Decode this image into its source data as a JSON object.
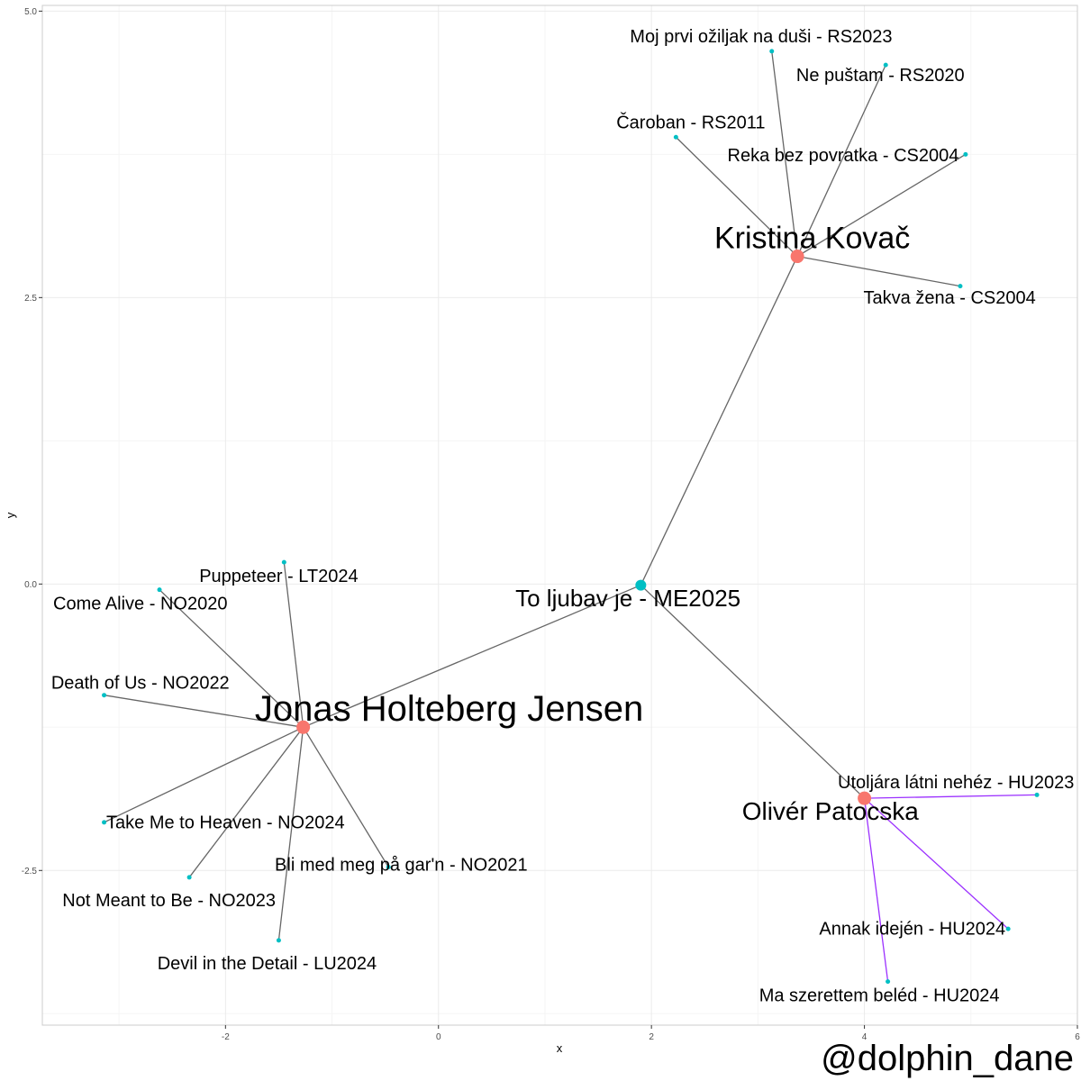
{
  "chart_data": {
    "type": "network",
    "xlabel": "x",
    "ylabel": "y",
    "xlim": [
      -3.72,
      6.0
    ],
    "ylim": [
      -3.85,
      5.05
    ],
    "x_ticks": [
      -2,
      0,
      2,
      4,
      6
    ],
    "x_tick_labels": [
      "-2",
      "0",
      "2",
      "4",
      "6"
    ],
    "y_ticks": [
      -2.5,
      0.0,
      2.5,
      5.0
    ],
    "y_tick_labels": [
      "-2.5",
      "0.0",
      "2.5",
      "5.0"
    ],
    "grid": true,
    "colors": {
      "artist": "#f8766d",
      "song": "#00bfc4",
      "edge": "#666666",
      "edge_highlight": "#9b30ff",
      "grid_major": "#ebebeb",
      "grid_minor": "#f5f5f5",
      "panel_border": "#cccccc"
    },
    "nodes": [
      {
        "id": "center",
        "label": "To ljubav je - ME2025",
        "kind": "song",
        "size": "medium",
        "x": 1.9,
        "y": -0.01,
        "font": 26,
        "lx": 1.78,
        "ly": -0.14
      },
      {
        "id": "kk",
        "label": "Kristina Kovač",
        "kind": "artist",
        "size": "large",
        "x": 3.37,
        "y": 2.86,
        "font": 34,
        "lx": 3.51,
        "ly": 3.0
      },
      {
        "id": "jhj",
        "label": "Jonas Holteberg Jensen",
        "kind": "artist",
        "size": "large",
        "x": -1.27,
        "y": -1.25,
        "font": 40,
        "lx": 0.1,
        "ly": -1.11
      },
      {
        "id": "op",
        "label": "Olivér Patocska",
        "kind": "artist",
        "size": "large",
        "x": 4.0,
        "y": -1.87,
        "font": 28,
        "lx": 3.68,
        "ly": -2.0
      },
      {
        "id": "s1",
        "label": "Moj prvi ožiljak na duši - RS2023",
        "kind": "song",
        "x": 3.13,
        "y": 4.65,
        "font": 20,
        "lx": 3.03,
        "ly": 4.77
      },
      {
        "id": "s2",
        "label": "Ne puštam - RS2020",
        "kind": "song",
        "x": 4.2,
        "y": 4.53,
        "font": 20,
        "lx": 4.15,
        "ly": 4.43
      },
      {
        "id": "s3",
        "label": "Čaroban - RS2011",
        "kind": "song",
        "x": 2.23,
        "y": 3.9,
        "font": 20,
        "lx": 2.37,
        "ly": 4.02
      },
      {
        "id": "s4",
        "label": "Reka bez povratka - CS2004",
        "kind": "song",
        "x": 4.95,
        "y": 3.75,
        "font": 20,
        "lx": 3.8,
        "ly": 3.73
      },
      {
        "id": "s5",
        "label": "Takva žena - CS2004",
        "kind": "song",
        "x": 4.9,
        "y": 2.6,
        "font": 20,
        "lx": 4.8,
        "ly": 2.49
      },
      {
        "id": "s6",
        "label": "Puppeteer - LT2024",
        "kind": "song",
        "x": -1.45,
        "y": 0.19,
        "font": 20,
        "lx": -1.5,
        "ly": 0.06
      },
      {
        "id": "s7",
        "label": "Come Alive - NO2020",
        "kind": "song",
        "x": -2.62,
        "y": -0.05,
        "font": 20,
        "lx": -2.8,
        "ly": -0.18
      },
      {
        "id": "s8",
        "label": "Death of Us - NO2022",
        "kind": "song",
        "x": -3.14,
        "y": -0.97,
        "font": 20,
        "lx": -2.8,
        "ly": -0.87
      },
      {
        "id": "s9",
        "label": "Take Me to Heaven - NO2024",
        "kind": "song",
        "x": -3.14,
        "y": -2.08,
        "font": 20,
        "lx": -2.0,
        "ly": -2.09
      },
      {
        "id": "s10",
        "label": "Not Meant to Be - NO2023",
        "kind": "song",
        "x": -2.34,
        "y": -2.56,
        "font": 20,
        "lx": -2.53,
        "ly": -2.77
      },
      {
        "id": "s11",
        "label": "Devil in the Detail - LU2024",
        "kind": "song",
        "x": -1.5,
        "y": -3.11,
        "font": 20,
        "lx": -1.61,
        "ly": -3.32
      },
      {
        "id": "s12",
        "label": "Bli med meg på gar'n - NO2021",
        "kind": "song",
        "x": -0.47,
        "y": -2.47,
        "font": 20,
        "lx": -0.35,
        "ly": -2.46
      },
      {
        "id": "s13",
        "label": "Utoljára látni nehéz - HU2023",
        "kind": "song",
        "x": 5.62,
        "y": -1.84,
        "font": 20,
        "lx": 4.86,
        "ly": -1.74
      },
      {
        "id": "s14",
        "label": "Annak idején - HU2024",
        "kind": "song",
        "x": 5.35,
        "y": -3.01,
        "font": 20,
        "lx": 4.45,
        "ly": -3.02
      },
      {
        "id": "s15",
        "label": "Ma szerettem beléd - HU2024",
        "kind": "song",
        "x": 4.22,
        "y": -3.47,
        "font": 20,
        "lx": 4.14,
        "ly": -3.6
      }
    ],
    "edges": [
      {
        "from": "center",
        "to": "kk",
        "style": "normal"
      },
      {
        "from": "center",
        "to": "jhj",
        "style": "normal"
      },
      {
        "from": "center",
        "to": "op",
        "style": "normal"
      },
      {
        "from": "kk",
        "to": "s1",
        "style": "normal"
      },
      {
        "from": "kk",
        "to": "s2",
        "style": "normal"
      },
      {
        "from": "kk",
        "to": "s3",
        "style": "normal"
      },
      {
        "from": "kk",
        "to": "s4",
        "style": "normal"
      },
      {
        "from": "kk",
        "to": "s5",
        "style": "normal"
      },
      {
        "from": "jhj",
        "to": "s6",
        "style": "normal"
      },
      {
        "from": "jhj",
        "to": "s7",
        "style": "normal"
      },
      {
        "from": "jhj",
        "to": "s8",
        "style": "normal"
      },
      {
        "from": "jhj",
        "to": "s9",
        "style": "normal"
      },
      {
        "from": "jhj",
        "to": "s10",
        "style": "normal"
      },
      {
        "from": "jhj",
        "to": "s11",
        "style": "normal"
      },
      {
        "from": "jhj",
        "to": "s12",
        "style": "normal"
      },
      {
        "from": "op",
        "to": "s13",
        "style": "highlight"
      },
      {
        "from": "op",
        "to": "s14",
        "style": "highlight"
      },
      {
        "from": "op",
        "to": "s15",
        "style": "highlight"
      }
    ]
  },
  "caption": "@dolphin_dane"
}
